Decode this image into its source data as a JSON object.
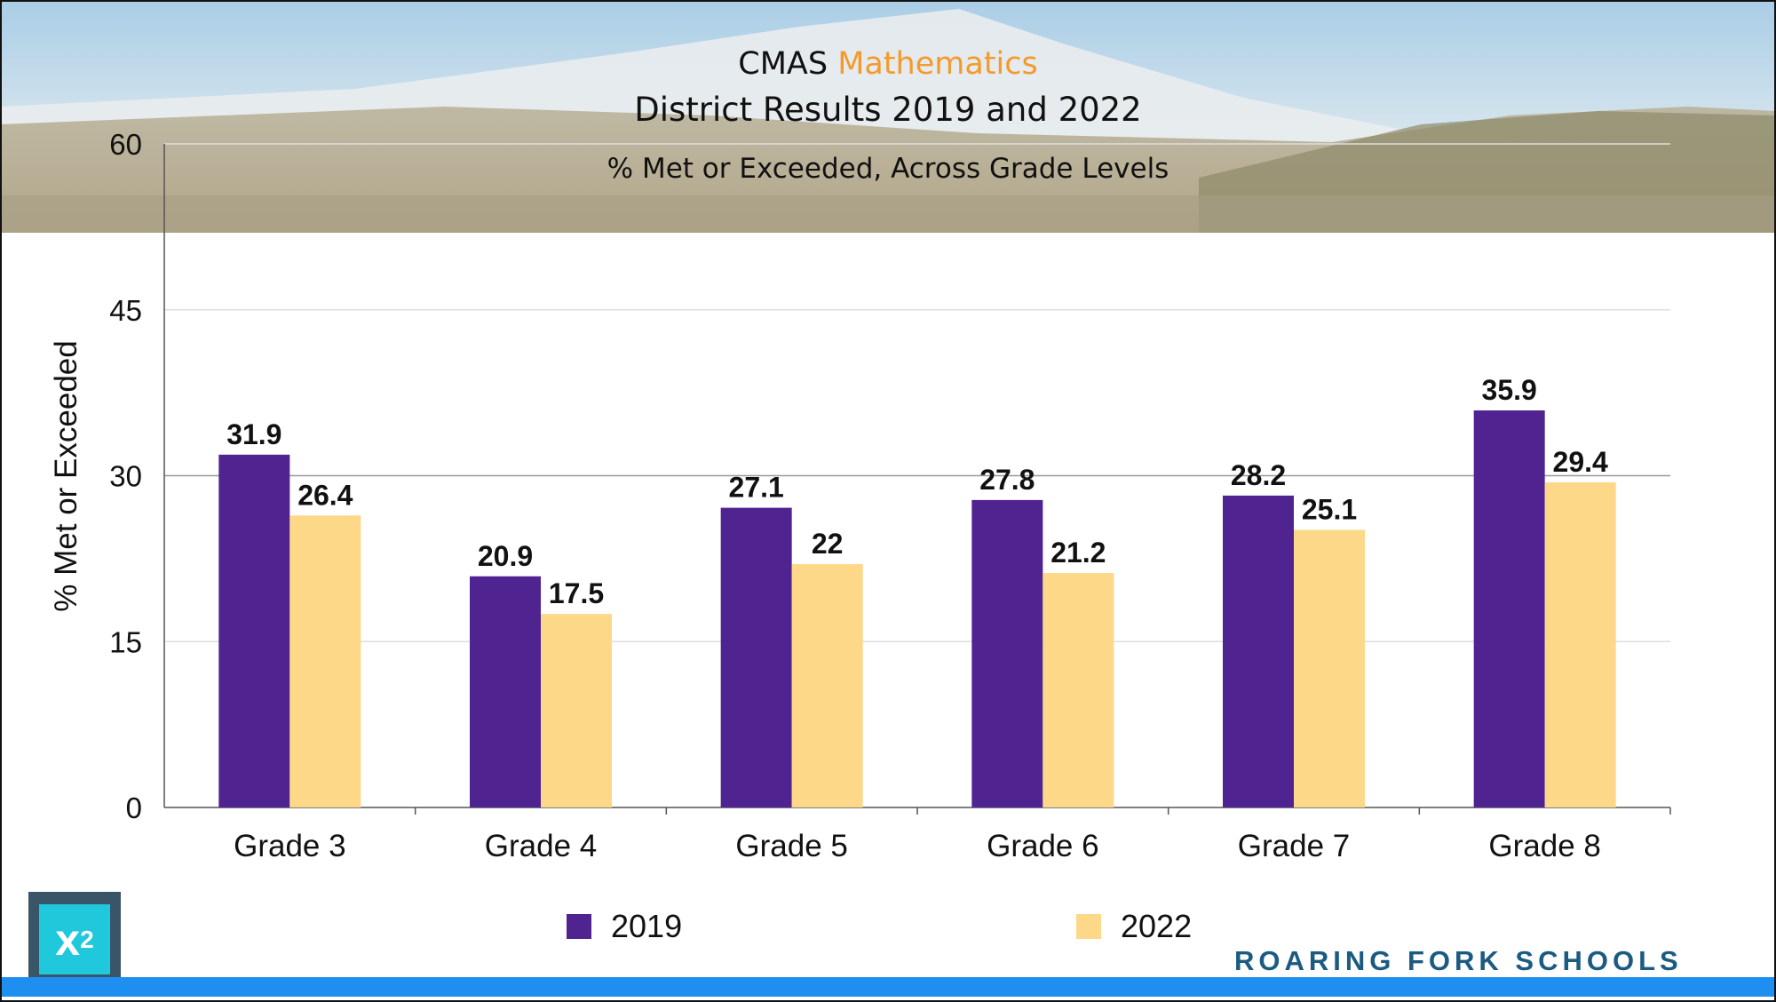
{
  "header": {
    "title_prefix": "CMAS",
    "title_subject": "Mathematics",
    "title_line2": "District Results 2019 and 2022",
    "subtitle": "% Met or Exceeded, Across Grade Levels"
  },
  "branding": {
    "logo_text": "x",
    "logo_superscript": "2",
    "organization": "ROARING FORK SCHOOLS"
  },
  "colors": {
    "accent": "#f59a2a",
    "brand": "#1b5b82",
    "bottom_bar": "#1e8ff0"
  },
  "chart_data": {
    "type": "bar",
    "title": "CMAS Mathematics District Results 2019 and 2022",
    "subtitle": "% Met or Exceeded, Across Grade Levels",
    "xlabel": "",
    "ylabel": "% Met or Exceeded",
    "ylim": [
      0,
      60
    ],
    "yticks": [
      0,
      15,
      30,
      45,
      60
    ],
    "grid": true,
    "legend": "bottom",
    "categories": [
      "Grade 3",
      "Grade 4",
      "Grade 5",
      "Grade 6",
      "Grade 7",
      "Grade 8"
    ],
    "series": [
      {
        "name": "2019",
        "color": "#4f2390",
        "values": [
          31.9,
          20.9,
          27.1,
          27.8,
          28.2,
          35.9
        ]
      },
      {
        "name": "2022",
        "color": "#fdd889",
        "values": [
          26.4,
          17.5,
          22,
          21.2,
          25.1,
          29.4
        ]
      }
    ]
  }
}
